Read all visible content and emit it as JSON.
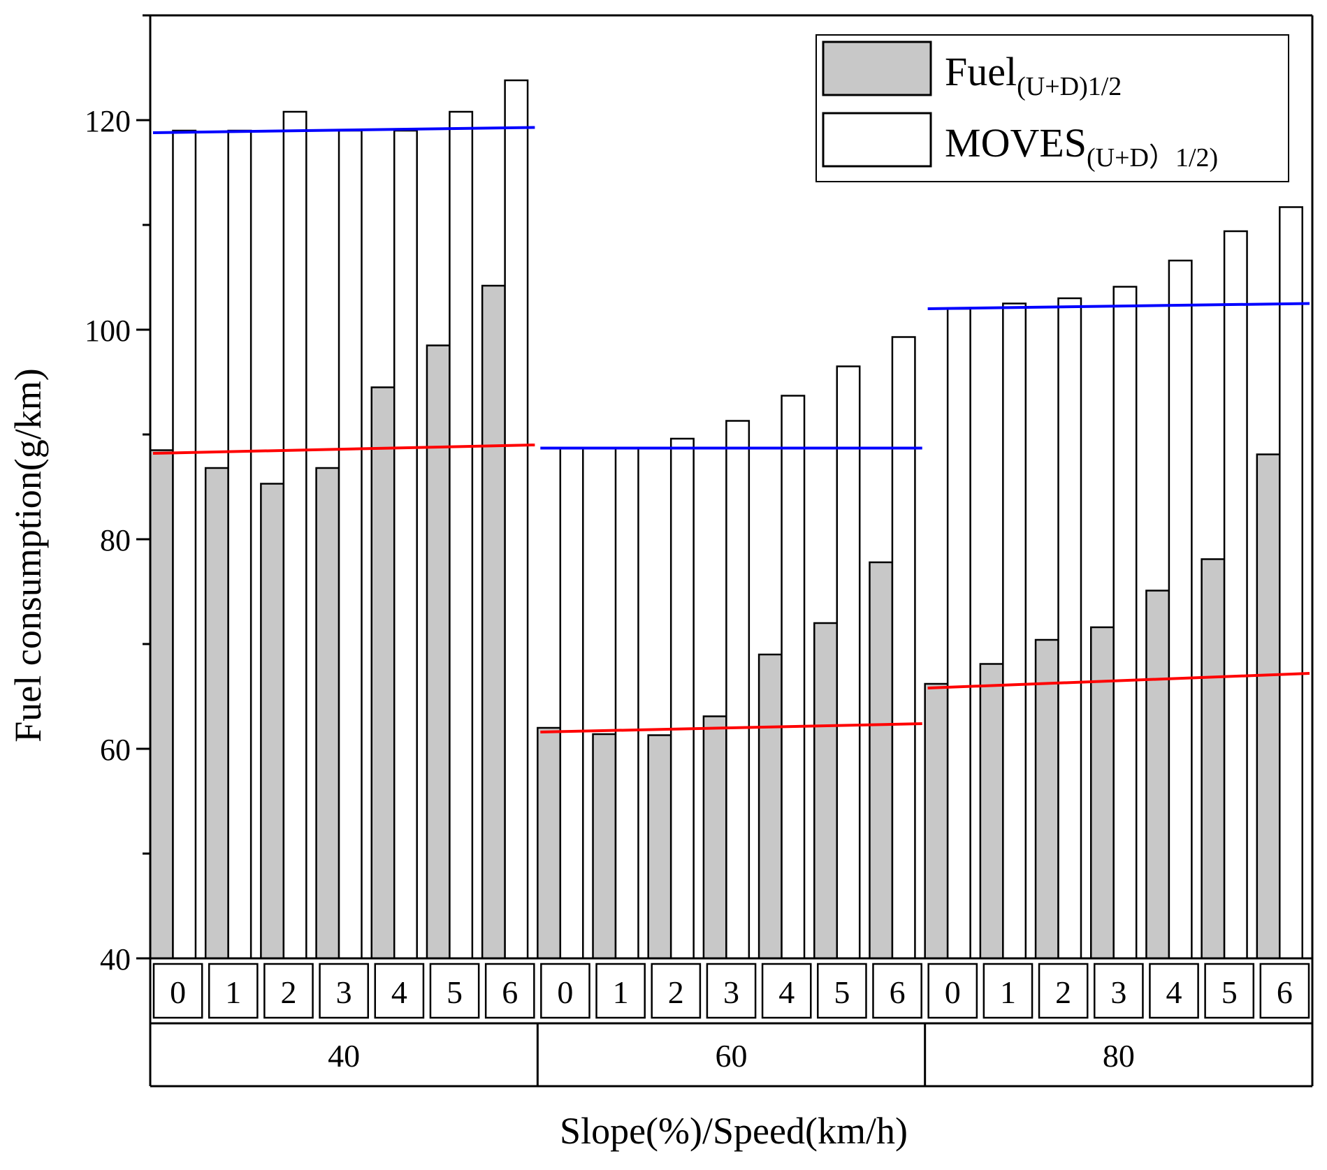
{
  "chart_data": {
    "type": "bar",
    "title": "",
    "xlabel": "Slope(%)/Speed(km/h)",
    "ylabel": "Fuel consumption(g/km)",
    "ylim": [
      40,
      130
    ],
    "yticks": [
      40,
      60,
      80,
      100,
      120
    ],
    "grid": false,
    "legend_position": "top-right",
    "groups": [
      {
        "label": "40",
        "slopes": [
          "0",
          "1",
          "2",
          "3",
          "4",
          "5",
          "6"
        ]
      },
      {
        "label": "60",
        "slopes": [
          "0",
          "1",
          "2",
          "3",
          "4",
          "5",
          "6"
        ]
      },
      {
        "label": "80",
        "slopes": [
          "0",
          "1",
          "2",
          "3",
          "4",
          "5",
          "6"
        ]
      }
    ],
    "series": [
      {
        "name": "Fuel(U+D)1/2",
        "legend_main": "Fuel",
        "legend_sub": "(U+D)1/2",
        "fill": "#c8c8c8",
        "values": [
          [
            88.5,
            86.8,
            85.3,
            86.8,
            94.5,
            98.5,
            104.2
          ],
          [
            62.0,
            61.4,
            61.3,
            63.1,
            69.0,
            72.0,
            77.8
          ],
          [
            66.2,
            68.1,
            70.4,
            71.6,
            75.1,
            78.1,
            88.1
          ]
        ]
      },
      {
        "name": "MOVES(U+D）1/2)",
        "legend_main": "MOVES",
        "legend_sub": "(U+D）1/2)",
        "fill": "#ffffff",
        "values": [
          [
            119.0,
            119.0,
            120.8,
            119.0,
            119.0,
            120.8,
            123.8
          ],
          [
            88.7,
            88.7,
            89.6,
            91.3,
            93.7,
            96.5,
            99.3
          ],
          [
            102.0,
            102.5,
            103.0,
            104.1,
            106.6,
            109.4,
            111.7
          ]
        ]
      }
    ],
    "trend_lines": [
      {
        "series": "MOVES(U+D）1/2)",
        "color": "#0000ff",
        "segments": [
          {
            "group": "40",
            "start": 118.8,
            "end": 119.3
          },
          {
            "group": "60",
            "start": 88.7,
            "end": 88.7
          },
          {
            "group": "80",
            "start": 102.0,
            "end": 102.5
          }
        ]
      },
      {
        "series": "Fuel(U+D)1/2",
        "color": "#ff0000",
        "segments": [
          {
            "group": "40",
            "start": 88.2,
            "end": 89.0
          },
          {
            "group": "60",
            "start": 61.6,
            "end": 62.4
          },
          {
            "group": "80",
            "start": 65.8,
            "end": 67.2
          }
        ]
      }
    ]
  }
}
